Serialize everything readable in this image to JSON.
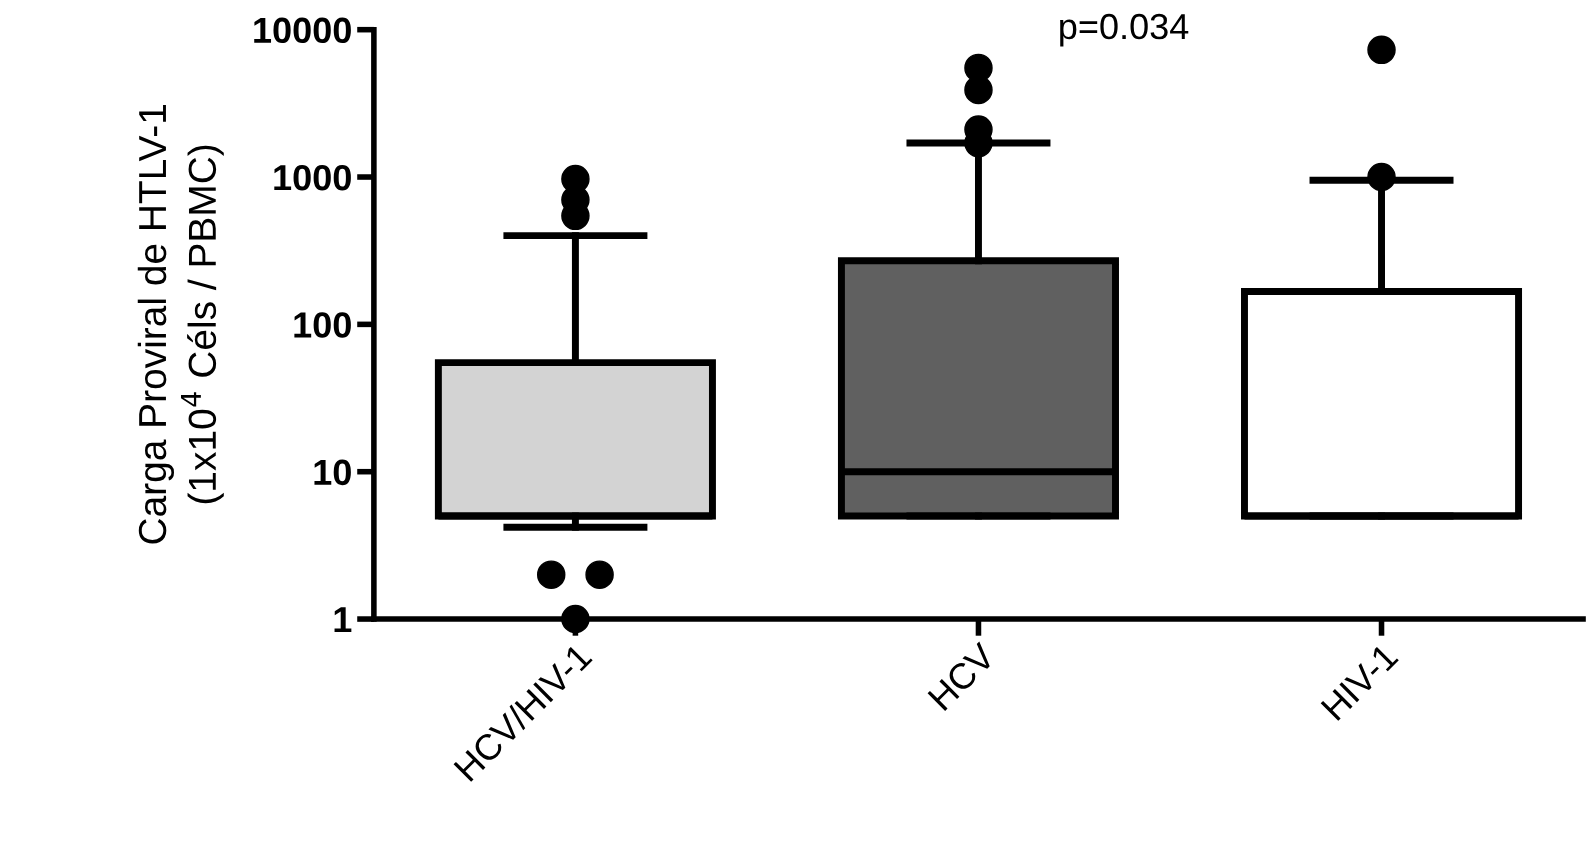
{
  "chart_data": {
    "type": "box",
    "ylabel": "Carga Proviral de HTLV-1\n(1x10$^{4}$ Céls / PBMC)",
    "categories": [
      "HCV/HIV-1",
      "HCV",
      "HIV-1"
    ],
    "colors": [
      "#d3d3d3",
      "#606060",
      "#ffffff"
    ],
    "boxes": [
      {
        "low": 4.2,
        "q1": 5,
        "median": 5,
        "q3": 55,
        "high": 400,
        "outliers": [
          970,
          700,
          545,
          2,
          2,
          1
        ]
      },
      {
        "low": 5,
        "q1": 5,
        "median": 10,
        "q3": 270,
        "high": 1700,
        "outliers": [
          5500,
          3900,
          2100,
          1700
        ]
      },
      {
        "low": 5,
        "q1": 5,
        "median": 5,
        "q3": 167,
        "high": 950,
        "outliers": [
          7300,
          1000
        ]
      }
    ],
    "log": "y",
    "ylim": [
      1,
      10000
    ],
    "yticks": [
      1,
      10,
      100,
      1000,
      10000
    ],
    "annotations": [
      "p=0.034"
    ],
    "grid": false
  }
}
